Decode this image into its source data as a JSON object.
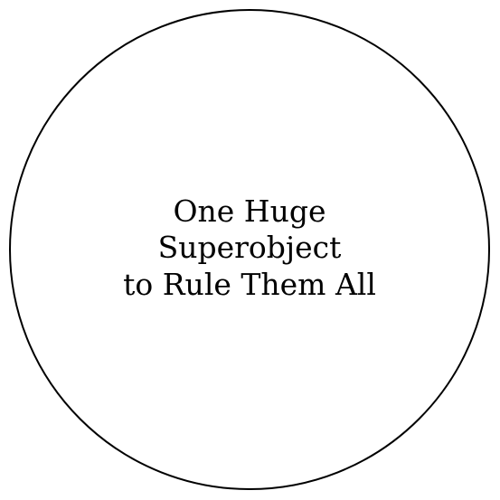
{
  "diagram": {
    "nodes": [
      {
        "id": "superobject",
        "shape": "circle",
        "label_lines": [
          "One Huge",
          "Superobject",
          "to Rule Them All"
        ],
        "stroke_color": "#000000",
        "fill_color": "#ffffff"
      }
    ],
    "edges": []
  }
}
